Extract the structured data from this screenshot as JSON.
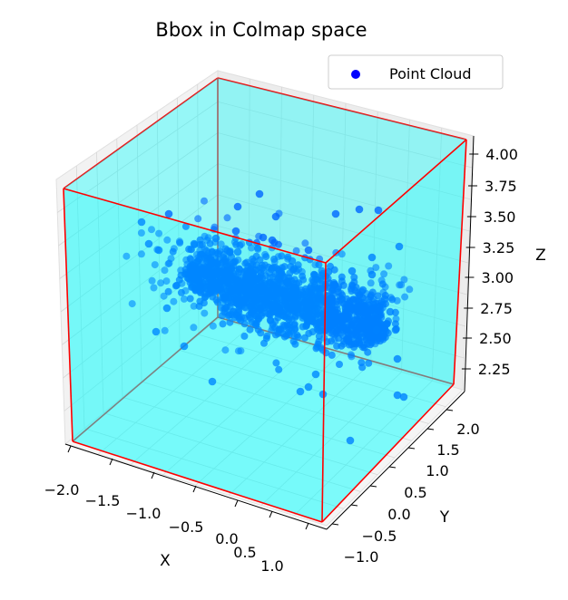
{
  "chart_data": {
    "type": "scatter",
    "title": "Bbox in Colmap space",
    "xlabel": "X",
    "ylabel": "Y",
    "zlabel": "Z",
    "xlim": [
      -2.0,
      1.25
    ],
    "ylim": [
      -1.0,
      2.2
    ],
    "zlim": [
      2.1,
      4.05
    ],
    "x_ticks": [
      "−2.0",
      "−1.5",
      "−1.0",
      "−0.5",
      "0.0",
      "0.5",
      "1.0"
    ],
    "y_ticks": [
      "−1.0",
      "−0.5",
      "0.0",
      "0.5",
      "1.0",
      "1.5",
      "2.0"
    ],
    "z_ticks": [
      "2.25",
      "2.50",
      "2.75",
      "3.00",
      "3.25",
      "3.50",
      "3.75",
      "4.00"
    ],
    "legend": {
      "position": "top-right",
      "label": "Point Cloud",
      "marker_color": "#0000ff"
    },
    "series": [
      {
        "name": "Point Cloud",
        "color": "#0066ff",
        "dense_cluster_center": [
          -0.5,
          0.2,
          2.75
        ],
        "outlier_count": 60
      }
    ],
    "bbox": {
      "face_color": "#00ffff",
      "face_alpha": 0.45,
      "edge_color": "#ff0000"
    },
    "grid": true
  }
}
